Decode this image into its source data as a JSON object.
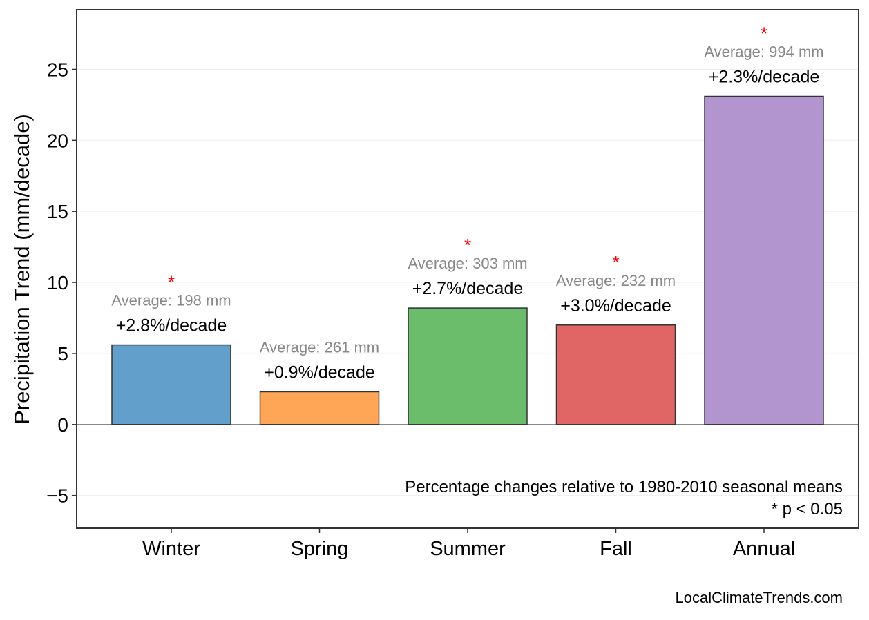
{
  "chart_data": {
    "type": "bar",
    "ylabel": "Precipitation Trend (mm/decade)",
    "xlabel": "",
    "ylim": [
      -7.3,
      29.2
    ],
    "yticks": [
      -5,
      0,
      5,
      10,
      15,
      20,
      25
    ],
    "ytick_labels": [
      "−5",
      "0",
      "5",
      "10",
      "15",
      "20",
      "25"
    ],
    "grid": true,
    "categories": [
      "Winter",
      "Spring",
      "Summer",
      "Fall",
      "Annual"
    ],
    "values": [
      5.6,
      2.3,
      8.2,
      7.0,
      23.1
    ],
    "colors": [
      "#62a0cb",
      "#ffa556",
      "#6bbd6b",
      "#e06666",
      "#b294cf"
    ],
    "percent_labels": [
      "+2.8%/decade",
      "+0.9%/decade",
      "+2.7%/decade",
      "+3.0%/decade",
      "+2.3%/decade"
    ],
    "average_labels": [
      "Average: 198 mm",
      "Average: 261 mm",
      "Average: 303 mm",
      "Average: 232 mm",
      "Average: 994 mm"
    ],
    "significant": [
      true,
      false,
      true,
      true,
      true
    ],
    "significance_marker": "*",
    "significance_color": "#ff0000",
    "note_lines": [
      "Percentage changes relative to 1980-2010 seasonal means",
      "* p < 0.05"
    ],
    "credit": "LocalClimateTrends.com"
  }
}
